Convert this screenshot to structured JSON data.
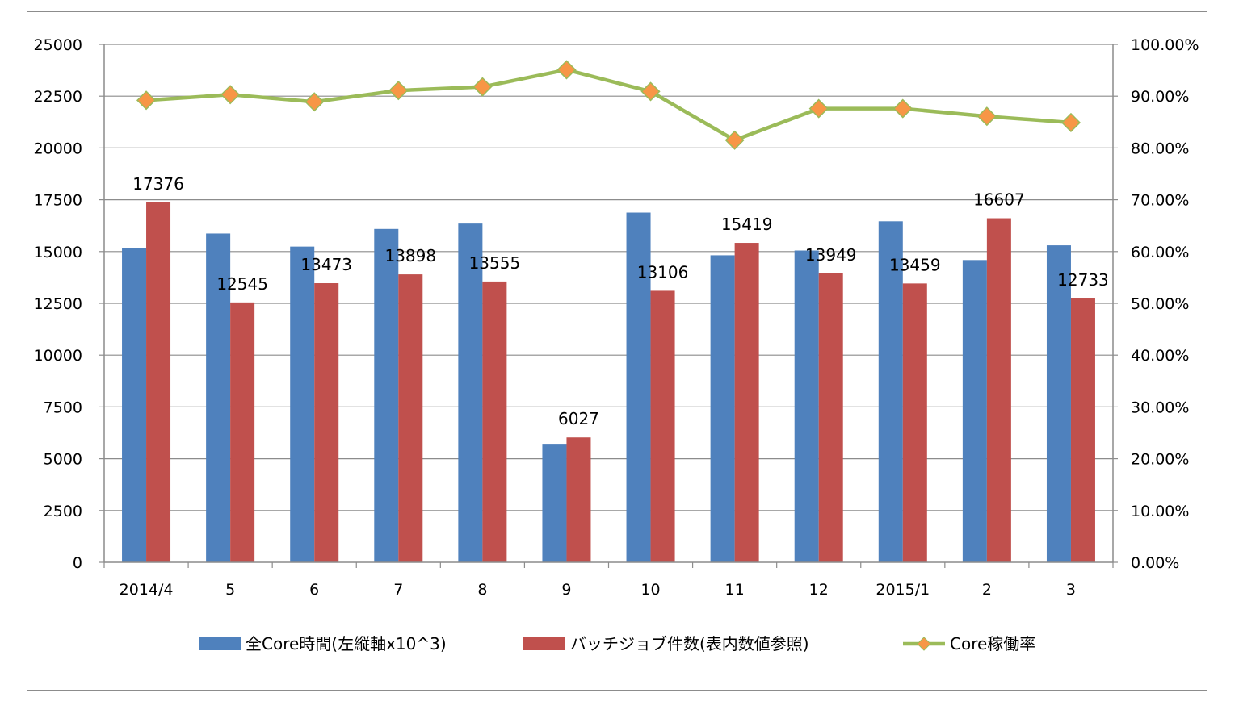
{
  "chart_data": {
    "type": "bar",
    "categories": [
      "2014/4",
      "5",
      "6",
      "7",
      "8",
      "9",
      "10",
      "11",
      "12",
      "2015/1",
      "2",
      "3"
    ],
    "series": [
      {
        "name": "全Core時間(左縦軸x10^3)",
        "kind": "bar",
        "axis": "left",
        "color": "#4f81bd",
        "values": [
          15150,
          15870,
          15240,
          16090,
          16350,
          5720,
          16880,
          14820,
          15050,
          16460,
          14590,
          15300
        ]
      },
      {
        "name": "バッチジョブ件数(表内数値参照)",
        "kind": "bar",
        "axis": "left",
        "color": "#c0504d",
        "values": [
          17376,
          12545,
          13473,
          13898,
          13555,
          6027,
          13106,
          15419,
          13949,
          13459,
          16607,
          12733
        ],
        "data_labels": [
          "17376",
          "12545",
          "13473",
          "13898",
          "13555",
          "6027",
          "13106",
          "15419",
          "13949",
          "13459",
          "16607",
          "12733"
        ]
      },
      {
        "name": "Core稼働率",
        "kind": "line",
        "axis": "right",
        "color": "#9bbb59",
        "marker_color": "#f79646",
        "marker": "diamond",
        "values": [
          89.2,
          90.3,
          88.9,
          91.1,
          91.8,
          95.1,
          90.9,
          81.5,
          87.6,
          87.6,
          86.1,
          84.9
        ]
      }
    ],
    "left_axis": {
      "ylim": [
        0,
        25000
      ],
      "ticks": [
        0,
        2500,
        5000,
        7500,
        10000,
        12500,
        15000,
        17500,
        20000,
        22500,
        25000
      ],
      "tick_labels": [
        "0",
        "2500",
        "5000",
        "7500",
        "10000",
        "12500",
        "15000",
        "17500",
        "20000",
        "22500",
        "25000"
      ]
    },
    "right_axis": {
      "ylim": [
        0,
        100
      ],
      "ticks": [
        0,
        10,
        20,
        30,
        40,
        50,
        60,
        70,
        80,
        90,
        100
      ],
      "tick_labels": [
        "0.00%",
        "10.00%",
        "20.00%",
        "30.00%",
        "40.00%",
        "50.00%",
        "60.00%",
        "70.00%",
        "80.00%",
        "90.00%",
        "100.00%"
      ]
    },
    "grid": true,
    "legend_position": "bottom"
  }
}
